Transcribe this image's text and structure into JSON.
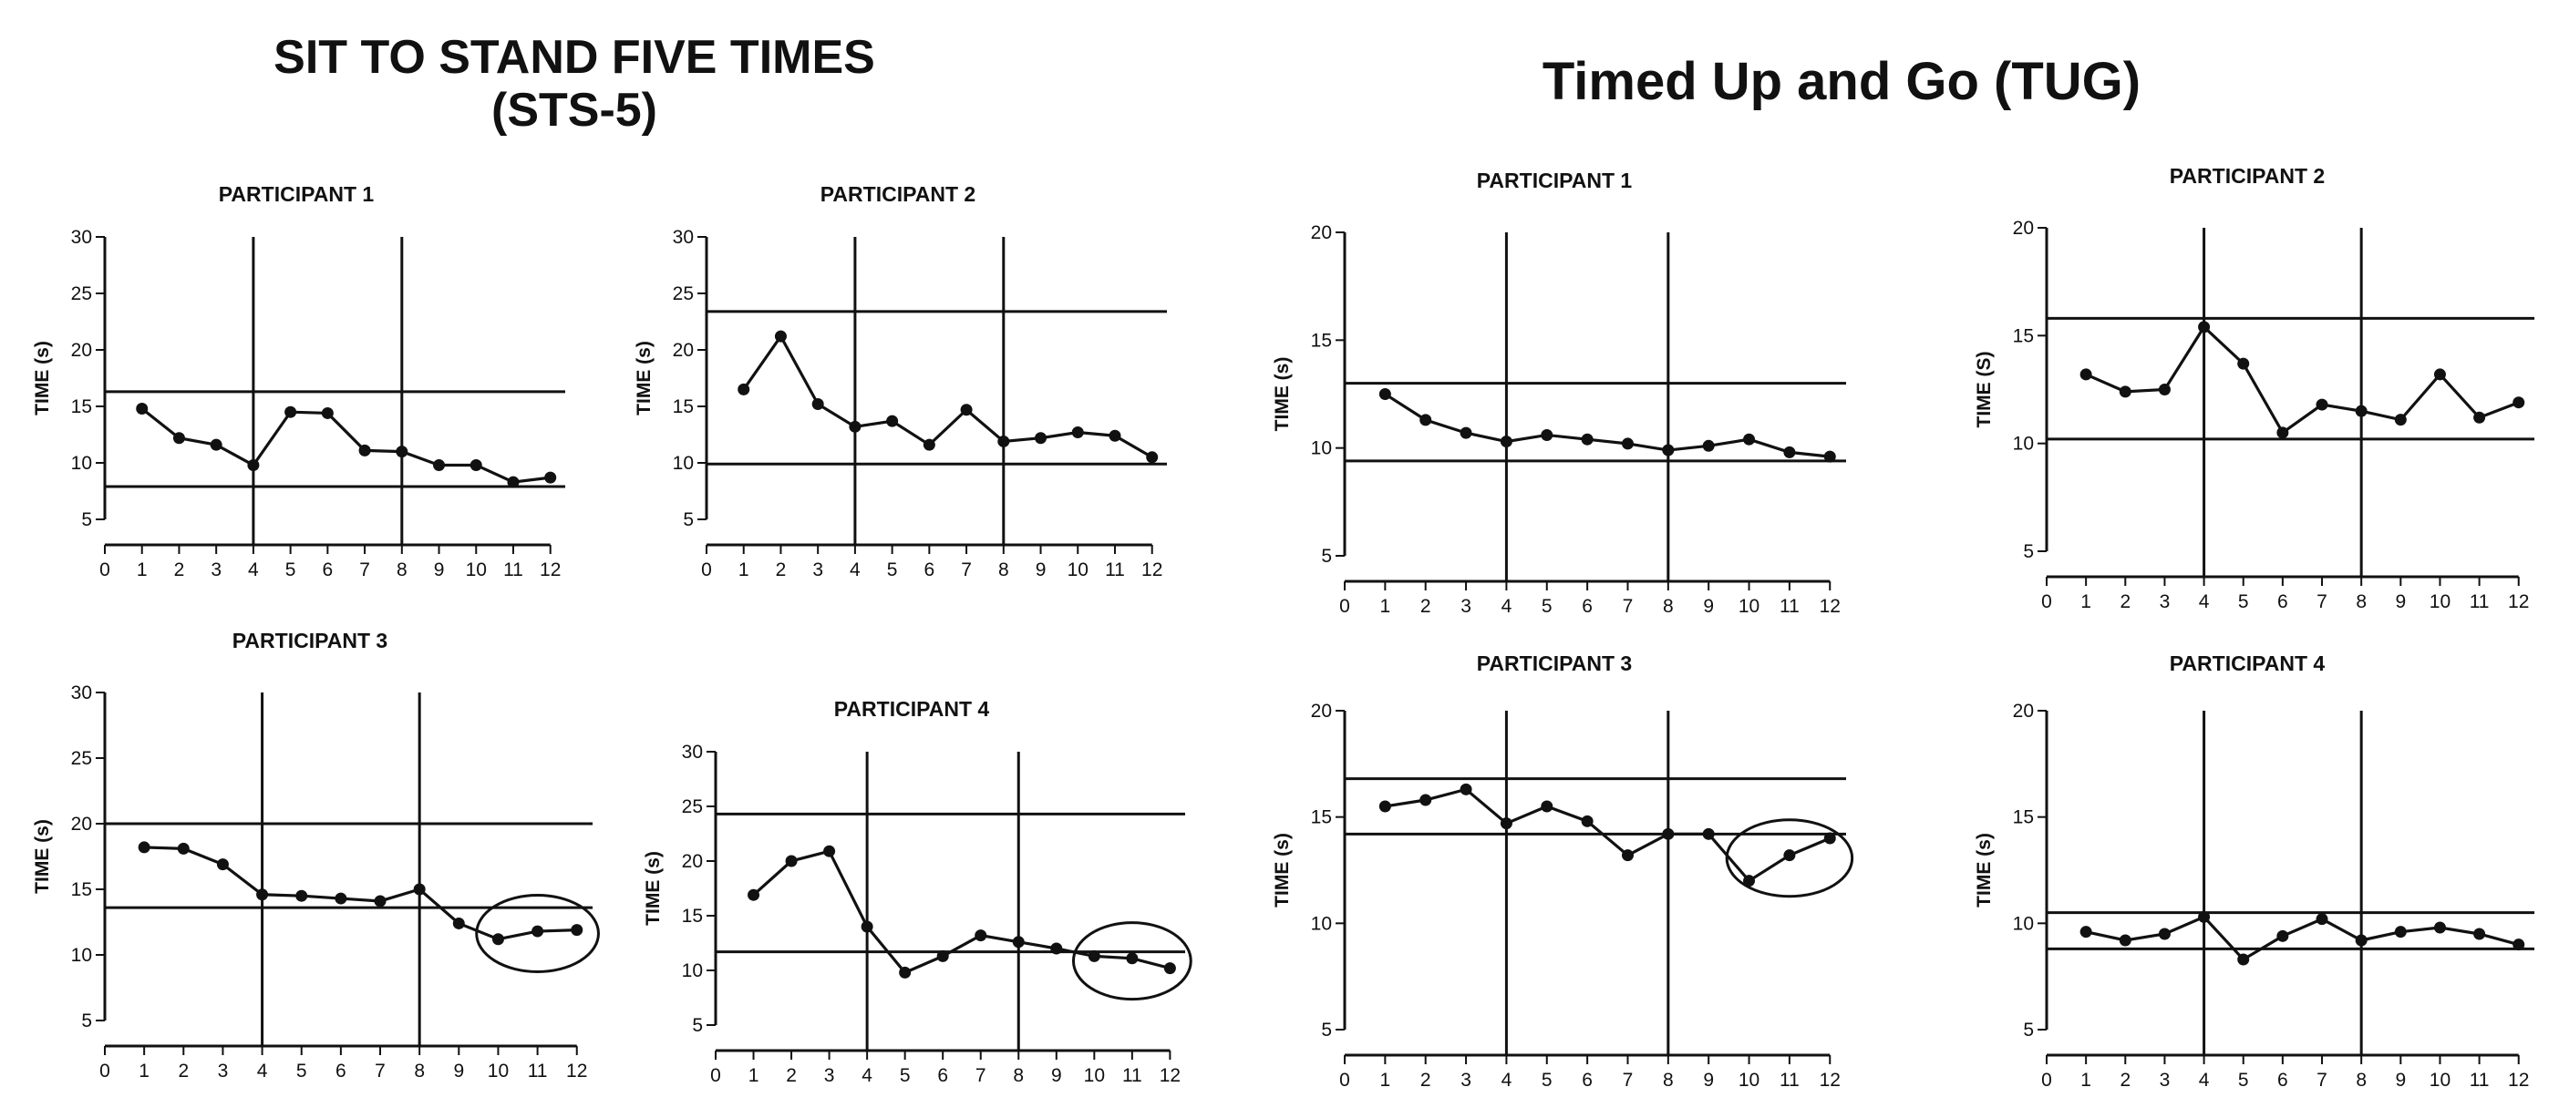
{
  "sections": {
    "sts_title_line1": "SIT TO STAND FIVE TIMES",
    "sts_title_line2": "(STS-5)",
    "tug_title": "Timed Up and Go (TUG)"
  },
  "chart_data": [
    {
      "type": "line",
      "group": "SIT TO STAND FIVE TIMES (STS-5)",
      "title": "PARTICIPANT 1",
      "ylabel": "TIME (s)",
      "xlabel": "",
      "ylim": [
        5,
        30
      ],
      "yticks": [
        5,
        10,
        15,
        20,
        25,
        30
      ],
      "x": [
        1,
        2,
        3,
        4,
        5,
        6,
        7,
        8,
        9,
        10,
        11,
        12
      ],
      "values": [
        14.8,
        12.2,
        11.6,
        9.8,
        14.5,
        14.4,
        11.1,
        11.0,
        9.8,
        9.8,
        8.3,
        8.7
      ],
      "phase_lines_x": [
        4,
        8
      ],
      "reference_lines_y": [
        16.3,
        7.9
      ],
      "circle_x": null
    },
    {
      "type": "line",
      "group": "SIT TO STAND FIVE TIMES (STS-5)",
      "title": "PARTICIPANT 2",
      "ylabel": "TIME (s)",
      "xlabel": "",
      "ylim": [
        5,
        30
      ],
      "yticks": [
        5,
        10,
        15,
        20,
        25,
        30
      ],
      "x": [
        1,
        2,
        3,
        4,
        5,
        6,
        7,
        8,
        9,
        10,
        11,
        12
      ],
      "values": [
        16.5,
        21.2,
        15.2,
        13.2,
        13.7,
        11.6,
        14.7,
        11.9,
        12.2,
        12.7,
        12.4,
        10.5
      ],
      "phase_lines_x": [
        4,
        8
      ],
      "reference_lines_y": [
        23.4,
        9.9
      ],
      "circle_x": null
    },
    {
      "type": "line",
      "group": "SIT TO STAND FIVE TIMES (STS-5)",
      "title": "PARTICIPANT 3",
      "ylabel": "TIME (s)",
      "xlabel": "",
      "ylim": [
        5,
        30
      ],
      "yticks": [
        5,
        10,
        15,
        20,
        25,
        30
      ],
      "x": [
        1,
        2,
        3,
        4,
        5,
        6,
        7,
        8,
        9,
        10,
        11,
        12
      ],
      "values": [
        18.2,
        18.1,
        16.9,
        14.6,
        14.5,
        14.3,
        14.1,
        15.0,
        12.4,
        11.2,
        11.8,
        11.9
      ],
      "phase_lines_x": [
        4,
        8
      ],
      "reference_lines_y": [
        20.0,
        13.6
      ],
      "circle_x": 11
    },
    {
      "type": "line",
      "group": "SIT TO STAND FIVE TIMES (STS-5)",
      "title": "PARTICIPANT 4",
      "ylabel": "TIME (s)",
      "xlabel": "",
      "ylim": [
        5,
        30
      ],
      "yticks": [
        5,
        10,
        15,
        20,
        25,
        30
      ],
      "x": [
        1,
        2,
        3,
        4,
        5,
        6,
        7,
        8,
        9,
        10,
        11,
        12
      ],
      "values": [
        16.9,
        20.0,
        20.9,
        14.0,
        9.8,
        11.3,
        13.2,
        12.6,
        12.0,
        11.3,
        11.1,
        10.2
      ],
      "phase_lines_x": [
        4,
        8
      ],
      "reference_lines_y": [
        24.3,
        11.7
      ],
      "circle_x": 11
    },
    {
      "type": "line",
      "group": "Timed Up and Go (TUG)",
      "title": "PARTICIPANT 1",
      "ylabel": "TIME (s)",
      "xlabel": "",
      "ylim": [
        5,
        20
      ],
      "yticks": [
        5,
        10,
        15,
        20
      ],
      "x": [
        1,
        2,
        3,
        4,
        5,
        6,
        7,
        8,
        9,
        10,
        11,
        12
      ],
      "values": [
        12.5,
        11.3,
        10.7,
        10.3,
        10.6,
        10.4,
        10.2,
        9.9,
        10.1,
        10.4,
        9.8,
        9.6
      ],
      "phase_lines_x": [
        4,
        8
      ],
      "reference_lines_y": [
        13.0,
        9.4
      ],
      "circle_x": null
    },
    {
      "type": "line",
      "group": "Timed Up and Go (TUG)",
      "title": "PARTICIPANT 2",
      "ylabel": "TIME (S)",
      "xlabel": "",
      "ylim": [
        5,
        20
      ],
      "yticks": [
        5,
        10,
        15,
        20
      ],
      "x": [
        1,
        2,
        3,
        4,
        5,
        6,
        7,
        8,
        9,
        10,
        11,
        12
      ],
      "values": [
        13.2,
        12.4,
        12.5,
        15.4,
        13.7,
        10.5,
        11.8,
        11.5,
        11.1,
        13.2,
        11.2,
        11.9
      ],
      "phase_lines_x": [
        4,
        8
      ],
      "reference_lines_y": [
        15.8,
        10.2
      ],
      "circle_x": null
    },
    {
      "type": "line",
      "group": "Timed Up and Go (TUG)",
      "title": "PARTICIPANT 3",
      "ylabel": "TIME (s)",
      "xlabel": "",
      "ylim": [
        5,
        20
      ],
      "yticks": [
        5,
        10,
        15,
        20
      ],
      "x": [
        1,
        2,
        3,
        4,
        5,
        6,
        7,
        8,
        9,
        10,
        11,
        12
      ],
      "values": [
        15.5,
        15.8,
        16.3,
        14.7,
        15.5,
        14.8,
        13.2,
        14.2,
        14.2,
        12.0,
        13.2,
        14.0
      ],
      "phase_lines_x": [
        4,
        8
      ],
      "reference_lines_y": [
        16.8,
        14.2
      ],
      "circle_x": 11
    },
    {
      "type": "line",
      "group": "Timed Up and Go (TUG)",
      "title": "PARTICIPANT 4",
      "ylabel": "TIME (s)",
      "xlabel": "",
      "ylim": [
        5,
        20
      ],
      "yticks": [
        5,
        10,
        15,
        20
      ],
      "x": [
        1,
        2,
        3,
        4,
        5,
        6,
        7,
        8,
        9,
        10,
        11,
        12
      ],
      "values": [
        9.6,
        9.2,
        9.5,
        10.3,
        8.3,
        9.4,
        10.2,
        9.2,
        9.6,
        9.8,
        9.5,
        9.0
      ],
      "phase_lines_x": [
        4,
        8
      ],
      "reference_lines_y": [
        10.5,
        8.8
      ],
      "circle_x": null
    }
  ]
}
